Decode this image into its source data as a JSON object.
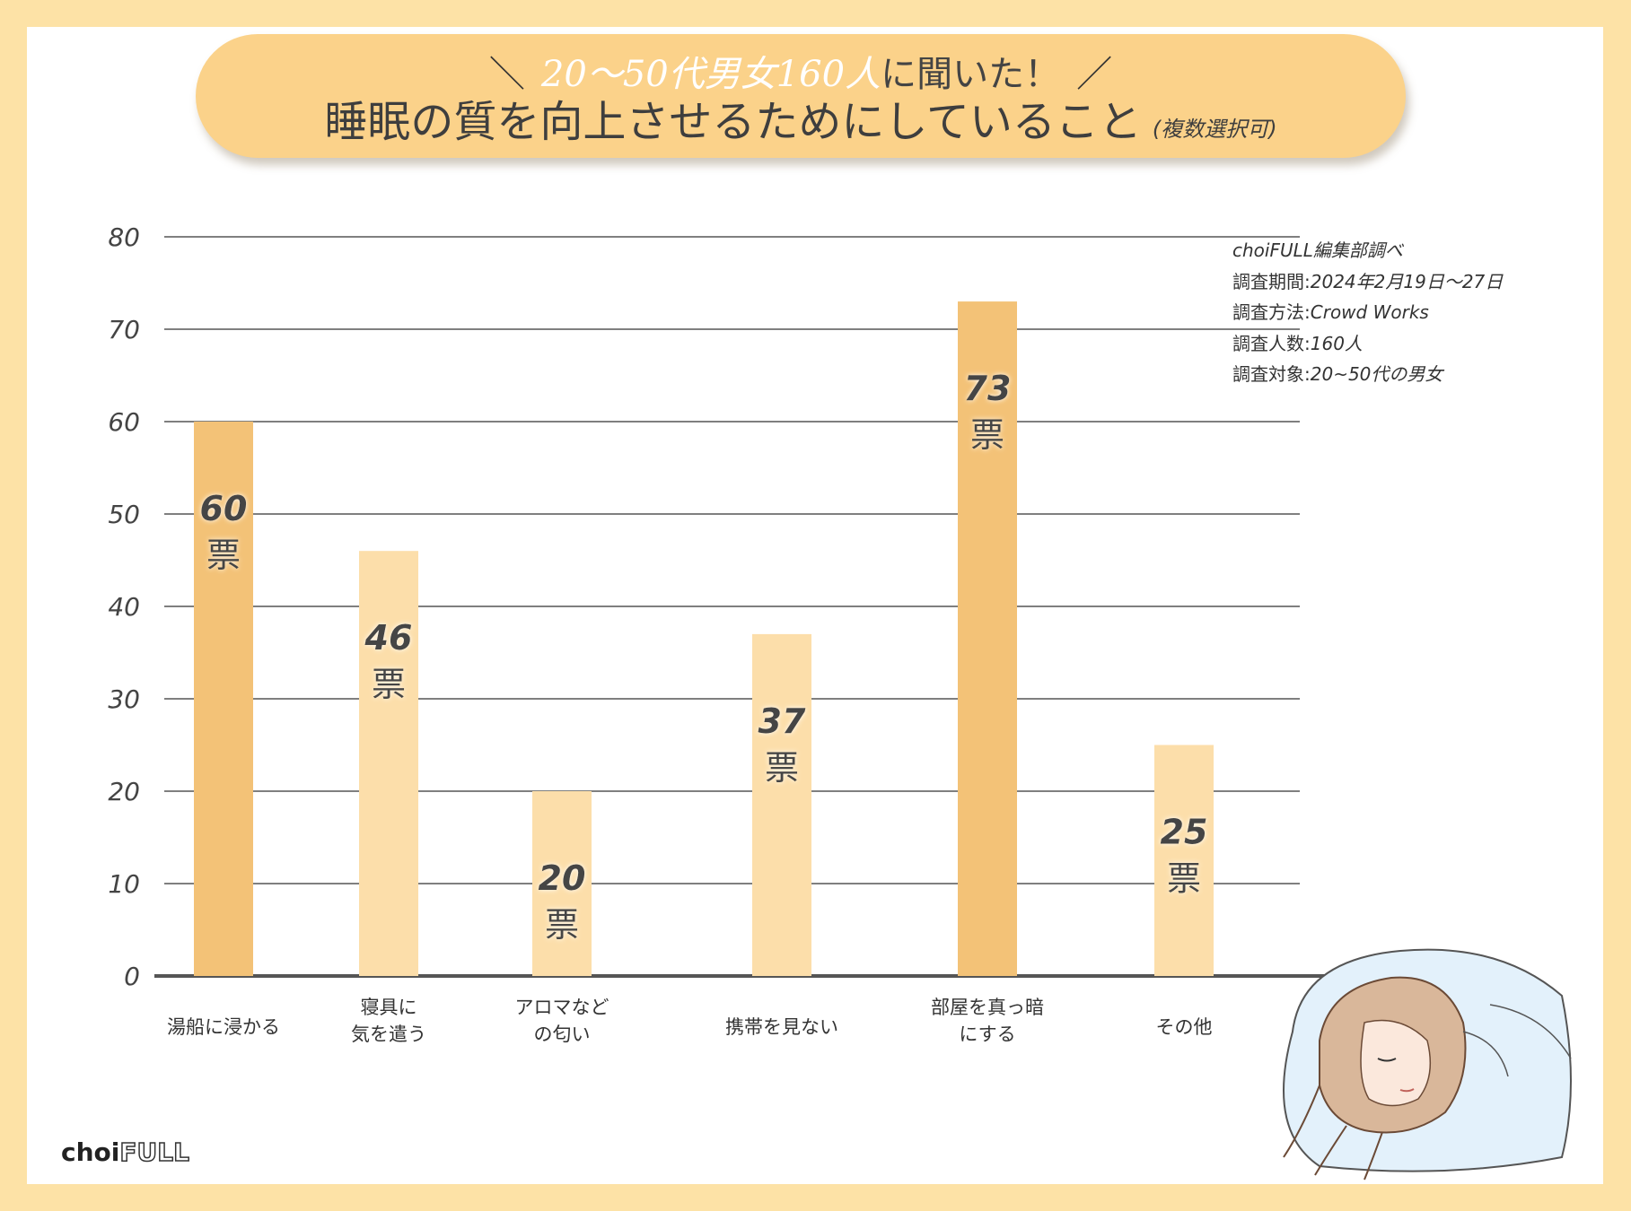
{
  "banner": {
    "line1_part1": "20〜50代男女160人",
    "line1_part2": "に聞いた！",
    "slash_left": "＼",
    "slash_right": "／",
    "title": "睡眠の質を向上させるためにしていること",
    "subtitle": "(複数選択可)"
  },
  "source": {
    "org": "choiFULL編集部調べ",
    "period_label": "調査期間:",
    "period": "2024年2月19日〜27日",
    "method_label": "調査方法:",
    "method": "Crowd Works",
    "count_label": "調査人数:",
    "count": "160人",
    "target_label": "調査対象:",
    "target": "20~50代の男女"
  },
  "logo": {
    "choi": "choi",
    "full": "FULL"
  },
  "colors": {
    "highlight": "#f3c277",
    "normal": "#fcdeaa",
    "banner": "#fbd28a",
    "background": "#fde2a6"
  },
  "chart_data": {
    "type": "bar",
    "title": "睡眠の質を向上させるためにしていること",
    "unit": "票",
    "categories": [
      "湯船に浸かる",
      "寝具に\n気を遣う",
      "アロマなど\nの匂い",
      "携帯を見ない",
      "部屋を真っ暗\nにする",
      "その他"
    ],
    "values": [
      60,
      46,
      20,
      37,
      73,
      25
    ],
    "highlight": [
      true,
      false,
      false,
      false,
      true,
      false
    ],
    "yticks": [
      0,
      10,
      20,
      30,
      40,
      50,
      60,
      70,
      80
    ],
    "ylim": [
      0,
      80
    ],
    "grid": true
  }
}
